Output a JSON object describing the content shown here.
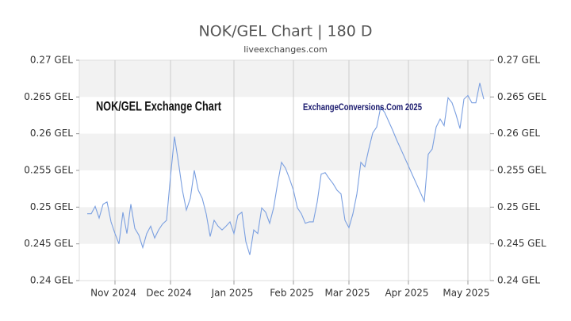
{
  "chart_data": {
    "type": "line",
    "title": "NOK/GEL Chart | 180 D",
    "subtitle": "liveexchanges.com",
    "annotations": [
      "NOK/GEL Exchange Chart",
      "ExchangeConversions.Com 2025"
    ],
    "categories": [
      null,
      null,
      null,
      null,
      null,
      null,
      null,
      "Nov 2024",
      null,
      null,
      null,
      null,
      null,
      null,
      null,
      null,
      null,
      null,
      null,
      null,
      null,
      "Dec 2024",
      null,
      null,
      null,
      null,
      null,
      null,
      null,
      null,
      null,
      null,
      null,
      null,
      null,
      null,
      null,
      "Jan 2025",
      null,
      null,
      null,
      null,
      null,
      null,
      null,
      null,
      null,
      null,
      null,
      null,
      null,
      null,
      "Feb 2025",
      null,
      null,
      null,
      null,
      null,
      null,
      null,
      null,
      null,
      null,
      null,
      null,
      null,
      "Mar 2025",
      null,
      null,
      null,
      null,
      null,
      null,
      null,
      null,
      null,
      null,
      null,
      null,
      null,
      null,
      "Apr 2025",
      null,
      null,
      null,
      null,
      null,
      null,
      null,
      null,
      null,
      null,
      null,
      null,
      null,
      null,
      "May 2025",
      null,
      null,
      null,
      null
    ],
    "series": [
      {
        "name": "NOK/GEL",
        "color": "#7a9fe0",
        "values": [
          0.2491,
          0.2491,
          0.2501,
          0.2485,
          0.2504,
          0.2507,
          0.248,
          0.2464,
          0.245,
          0.2493,
          0.2464,
          0.2504,
          0.2471,
          0.2462,
          0.2445,
          0.2464,
          0.2474,
          0.2458,
          0.2469,
          0.2477,
          0.2482,
          0.2542,
          0.2596,
          0.2561,
          0.2523,
          0.2496,
          0.2512,
          0.255,
          0.2523,
          0.2512,
          0.2491,
          0.246,
          0.2482,
          0.2474,
          0.2469,
          0.2474,
          0.248,
          0.2464,
          0.2489,
          0.2493,
          0.2453,
          0.2435,
          0.2469,
          0.2464,
          0.2499,
          0.2493,
          0.2478,
          0.2499,
          0.2532,
          0.2561,
          0.2553,
          0.2539,
          0.2523,
          0.2499,
          0.2491,
          0.2478,
          0.248,
          0.248,
          0.2507,
          0.2545,
          0.2547,
          0.2539,
          0.2532,
          0.2523,
          0.2518,
          0.2482,
          0.2472,
          0.2491,
          0.2518,
          0.2561,
          0.2555,
          0.2579,
          0.2601,
          0.2609,
          0.2636,
          0.2629,
          0.2617,
          0.2605,
          0.2592,
          0.258,
          0.2568,
          0.2556,
          0.2544,
          0.2532,
          0.252,
          0.2508,
          0.2572,
          0.2579,
          0.2609,
          0.262,
          0.2611,
          0.2649,
          0.2642,
          0.2626,
          0.2607,
          0.2647,
          0.2652,
          0.2642,
          0.2642,
          0.2669,
          0.2647
        ]
      }
    ],
    "ylim": [
      0.24,
      0.27
    ],
    "yticks": [
      {
        "value": 0.24,
        "label": "0.24 GEL"
      },
      {
        "value": 0.245,
        "label": "0.245 GEL"
      },
      {
        "value": 0.25,
        "label": "0.25 GEL"
      },
      {
        "value": 0.255,
        "label": "0.255 GEL"
      },
      {
        "value": 0.26,
        "label": "0.26 GEL"
      },
      {
        "value": 0.265,
        "label": "0.265 GEL"
      },
      {
        "value": 0.27,
        "label": "0.27 GEL"
      }
    ],
    "y2lim": [
      0.24,
      0.27
    ],
    "y2ticks": [
      {
        "value": 0.24,
        "label": "0.24 GEL"
      },
      {
        "value": 0.245,
        "label": "0.245 GEL"
      },
      {
        "value": 0.25,
        "label": "0.25 GEL"
      },
      {
        "value": 0.255,
        "label": "0.255 GEL"
      },
      {
        "value": 0.26,
        "label": "0.26 GEL"
      },
      {
        "value": 0.265,
        "label": "0.265 GEL"
      },
      {
        "value": 0.27,
        "label": "0.27 GEL"
      }
    ],
    "grid": true
  }
}
